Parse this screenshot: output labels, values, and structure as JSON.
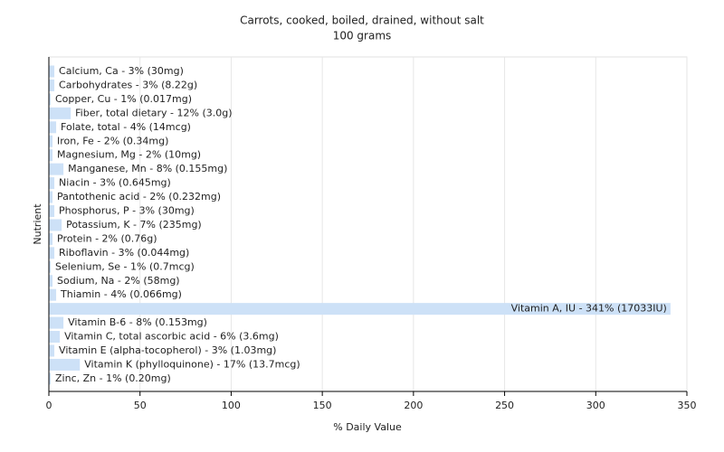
{
  "chart_data": {
    "type": "bar",
    "orientation": "horizontal",
    "title": "Carrots, cooked, boiled, drained, without salt",
    "subtitle": "100 grams",
    "x_label": "% Daily Value",
    "y_label": "Nutrient",
    "values": [
      3,
      3,
      1,
      12,
      4,
      2,
      2,
      8,
      3,
      2,
      3,
      7,
      2,
      3,
      1,
      2,
      4,
      341,
      8,
      6,
      3,
      17,
      1
    ],
    "value_labels": [
      "Calcium, Ca - 3% (30mg)",
      "Carbohydrates - 3% (8.22g)",
      "Copper, Cu - 1% (0.017mg)",
      "Fiber, total dietary - 12% (3.0g)",
      "Folate, total - 4% (14mcg)",
      "Iron, Fe - 2% (0.34mg)",
      "Magnesium, Mg - 2% (10mg)",
      "Manganese, Mn - 8% (0.155mg)",
      "Niacin - 3% (0.645mg)",
      "Pantothenic acid - 2% (0.232mg)",
      "Phosphorus, P - 3% (30mg)",
      "Potassium, K - 7% (235mg)",
      "Protein - 2% (0.76g)",
      "Riboflavin - 3% (0.044mg)",
      "Selenium, Se - 1% (0.7mcg)",
      "Sodium, Na - 2% (58mg)",
      "Thiamin - 4% (0.066mg)",
      "Vitamin A, IU - 341% (17033IU)",
      "Vitamin B-6 - 8% (0.153mg)",
      "Vitamin C, total ascorbic acid - 6% (3.6mg)",
      "Vitamin E (alpha-tocopherol) - 3% (1.03mg)",
      "Vitamin K (phylloquinone) - 17% (13.7mcg)",
      "Zinc, Zn - 1% (0.20mg)"
    ],
    "color": "#cde1f7",
    "xlim": [
      0,
      350
    ],
    "xticks": [
      0,
      50,
      100,
      150,
      200,
      250,
      300,
      350
    ],
    "grid": true
  }
}
